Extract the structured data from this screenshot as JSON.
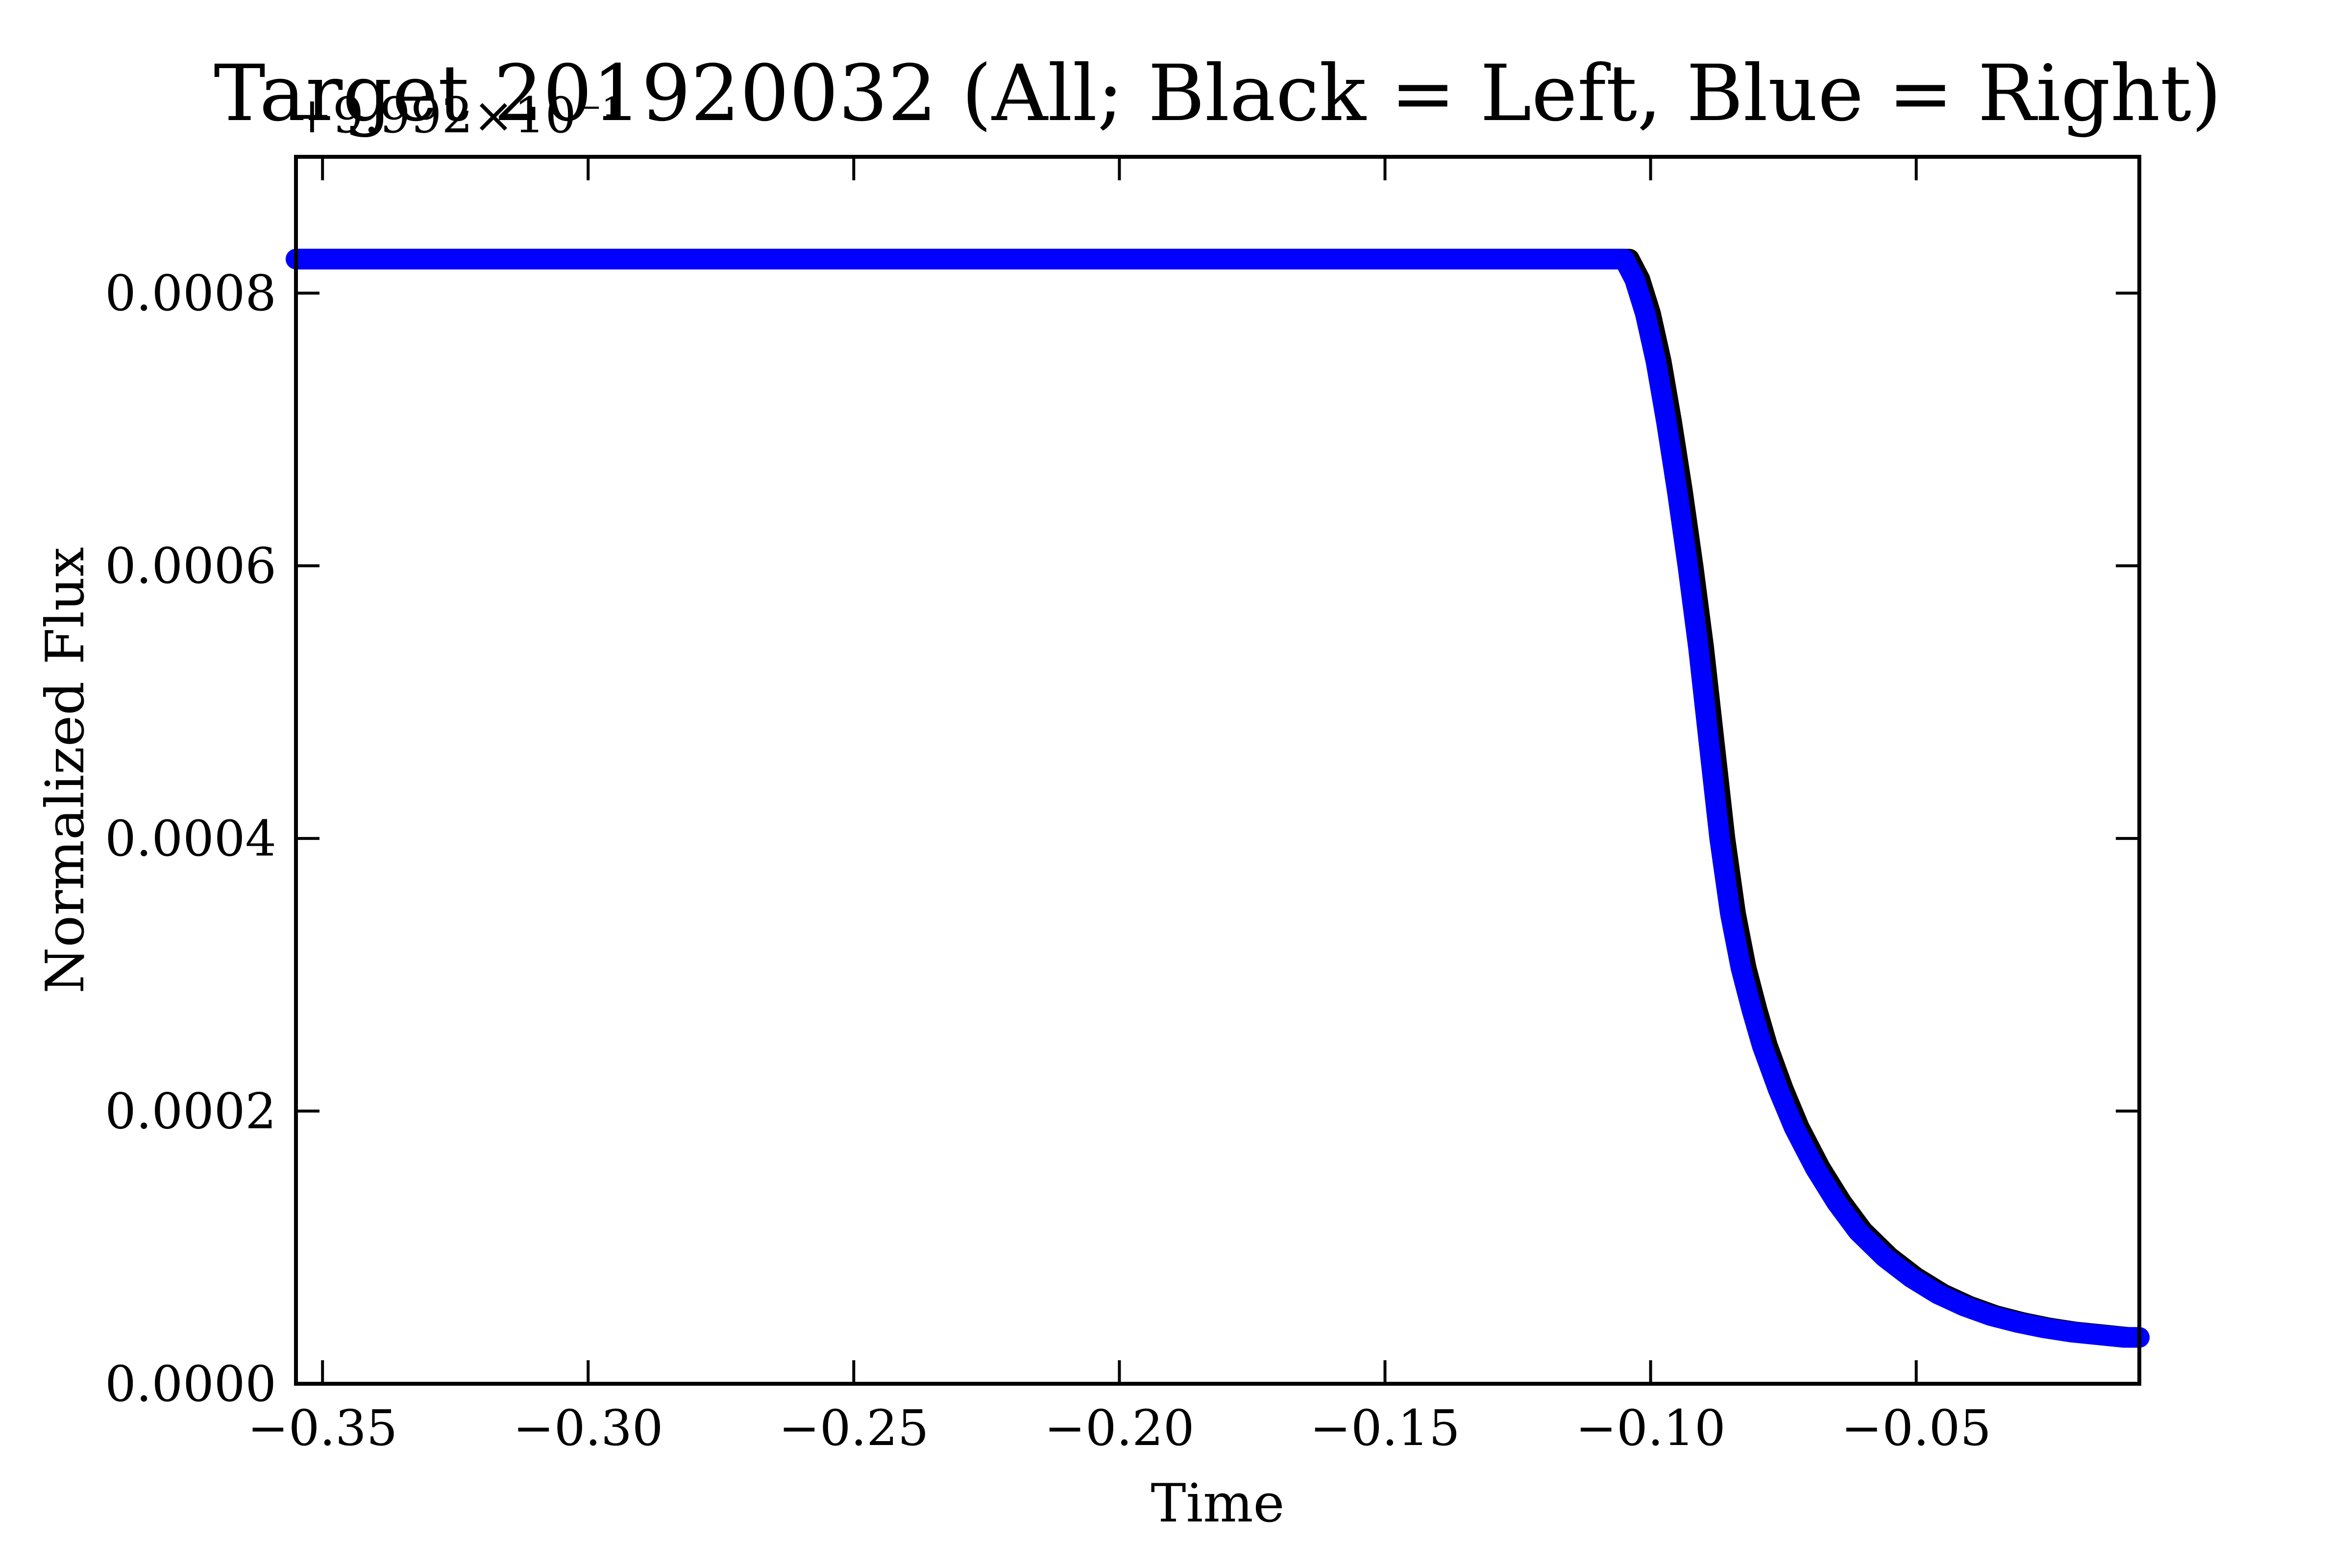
{
  "chart_data": {
    "type": "scatter",
    "title": "Target 201920032 (All; Black = Left, Blue = Right)",
    "xlabel": "Time",
    "ylabel": "Normalized Flux",
    "offset_label": "+9.992×10⁻¹",
    "xlim": [
      -0.355,
      -0.008
    ],
    "ylim": [
      0.0,
      0.0009
    ],
    "grid": false,
    "x_ticks": [
      -0.35,
      -0.3,
      -0.25,
      -0.2,
      -0.15,
      -0.1,
      -0.05
    ],
    "x_tick_labels": [
      "−0.35",
      "−0.30",
      "−0.25",
      "−0.20",
      "−0.15",
      "−0.10",
      "−0.05"
    ],
    "y_ticks": [
      0.0,
      0.0002,
      0.0004,
      0.0006,
      0.0008
    ],
    "y_tick_labels": [
      "0.0000",
      "0.0002",
      "0.0004",
      "0.0006",
      "0.0008"
    ],
    "series": [
      {
        "name": "Left",
        "color": "#000000",
        "x": [
          -0.355,
          -0.3,
          -0.25,
          -0.2,
          -0.15,
          -0.12,
          -0.104,
          -0.102,
          -0.1,
          -0.098,
          -0.096,
          -0.094,
          -0.092,
          -0.09,
          -0.088,
          -0.086,
          -0.084,
          -0.082,
          -0.08,
          -0.078,
          -0.075,
          -0.072,
          -0.068,
          -0.064,
          -0.06,
          -0.055,
          -0.05,
          -0.045,
          -0.04,
          -0.035,
          -0.03,
          -0.025,
          -0.02,
          -0.015,
          -0.01,
          -0.008
        ],
        "y": [
          0.000825,
          0.000825,
          0.000825,
          0.000825,
          0.000825,
          0.000825,
          0.000825,
          0.00081,
          0.000785,
          0.00075,
          0.000705,
          0.000655,
          0.0006,
          0.00054,
          0.00047,
          0.0004,
          0.000345,
          0.000305,
          0.000275,
          0.000248,
          0.000216,
          0.000188,
          0.000158,
          0.000133,
          0.000112,
          9.3e-05,
          7.8e-05,
          6.6e-05,
          5.7e-05,
          5e-05,
          4.5e-05,
          4.1e-05,
          3.8e-05,
          3.6e-05,
          3.4e-05,
          3.4e-05
        ]
      },
      {
        "name": "Right",
        "color": "#0000ff",
        "x": [
          -0.355,
          -0.3,
          -0.25,
          -0.2,
          -0.15,
          -0.12,
          -0.105,
          -0.103,
          -0.101,
          -0.099,
          -0.097,
          -0.095,
          -0.093,
          -0.091,
          -0.089,
          -0.087,
          -0.085,
          -0.083,
          -0.081,
          -0.079,
          -0.076,
          -0.073,
          -0.069,
          -0.065,
          -0.061,
          -0.056,
          -0.051,
          -0.046,
          -0.041,
          -0.036,
          -0.031,
          -0.026,
          -0.021,
          -0.016,
          -0.011,
          -0.008
        ],
        "y": [
          0.000825,
          0.000825,
          0.000825,
          0.000825,
          0.000825,
          0.000825,
          0.000825,
          0.00081,
          0.000785,
          0.00075,
          0.000705,
          0.000655,
          0.0006,
          0.00054,
          0.00047,
          0.0004,
          0.000345,
          0.000305,
          0.000275,
          0.000248,
          0.000216,
          0.000188,
          0.000158,
          0.000133,
          0.000112,
          9.3e-05,
          7.8e-05,
          6.6e-05,
          5.7e-05,
          5e-05,
          4.5e-05,
          4.1e-05,
          3.8e-05,
          3.6e-05,
          3.4e-05,
          3.4e-05
        ]
      }
    ]
  }
}
